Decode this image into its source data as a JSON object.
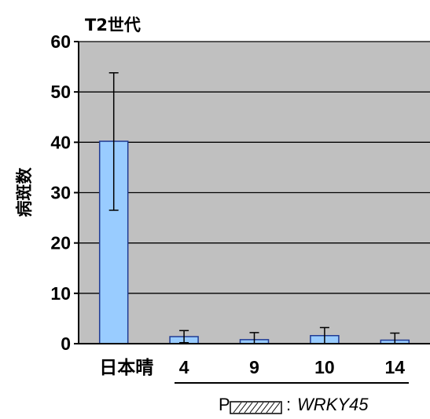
{
  "chart_data": {
    "type": "bar",
    "title": "T2世代",
    "ylabel": "病斑数",
    "xlabel": "",
    "ylim": [
      0,
      60
    ],
    "yticks": [
      0,
      10,
      20,
      30,
      40,
      50,
      60
    ],
    "ytick_labels": [
      "0",
      "10",
      "20",
      "30",
      "40",
      "50",
      "60"
    ],
    "grid": true,
    "categories": [
      "日本晴",
      "4",
      "9",
      "10",
      "14"
    ],
    "values": [
      40.2,
      1.4,
      0.8,
      1.6,
      0.7
    ],
    "error_low": [
      26.5,
      0.2,
      0.0,
      0.0,
      0.0
    ],
    "error_high": [
      53.8,
      2.6,
      2.2,
      3.2,
      2.1
    ],
    "bar_color": "#99ccff",
    "bar_edge_color": "#1f3a93",
    "plot_bg_color": "#c0c0c0",
    "group_bracket_categories": [
      "4",
      "9",
      "10",
      "14"
    ],
    "legend": {
      "prefix": "P",
      "separator": ":",
      "gene": "WRKY45"
    }
  }
}
